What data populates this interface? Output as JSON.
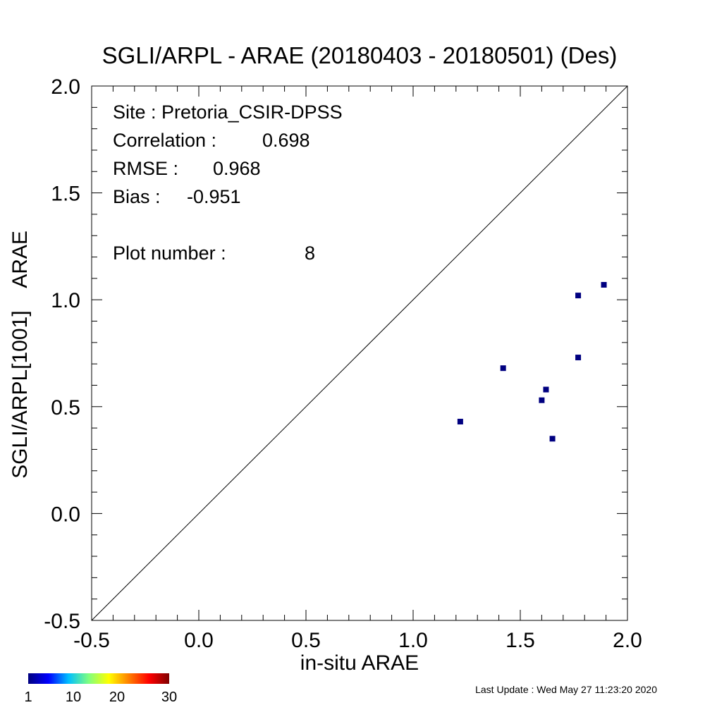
{
  "chart_data": {
    "type": "scatter",
    "title": "SGLI/ARPL - ARAE (20180403 - 20180501) (Des)",
    "xlabel": "in-situ ARAE",
    "ylabel": "SGLI/ARPL[1001]    ARAE",
    "xlim": [
      -0.5,
      2.0
    ],
    "ylim": [
      -0.5,
      2.0
    ],
    "x_ticks": [
      "-0.5",
      "0.0",
      "0.5",
      "1.0",
      "1.5",
      "2.0"
    ],
    "y_ticks": [
      "-0.5",
      "0.0",
      "0.5",
      "1.0",
      "1.5",
      "2.0"
    ],
    "reference_line": "1:1",
    "grid": false,
    "point_color": "#000080",
    "points": [
      {
        "x": 1.22,
        "y": 0.43
      },
      {
        "x": 1.42,
        "y": 0.68
      },
      {
        "x": 1.6,
        "y": 0.53
      },
      {
        "x": 1.62,
        "y": 0.58
      },
      {
        "x": 1.65,
        "y": 0.35
      },
      {
        "x": 1.77,
        "y": 0.73
      },
      {
        "x": 1.77,
        "y": 1.02
      },
      {
        "x": 1.89,
        "y": 1.07
      }
    ],
    "stats": {
      "site_label": "Site : Pretoria_CSIR-DPSS",
      "correlation_label": "Correlation :",
      "correlation_value": "0.698",
      "rmse_label": "RMSE :",
      "rmse_value": "0.968",
      "bias_label": "Bias :",
      "bias_value": "-0.951",
      "plot_number_label": "Plot number :",
      "plot_number_value": "8"
    },
    "colorbar": {
      "labels": [
        "1",
        "10",
        "20",
        "30"
      ],
      "colors": [
        "#00007f",
        "#0000ff",
        "#00bfff",
        "#7fff7f",
        "#ffff00",
        "#ff7f00",
        "#ff0000",
        "#7f0000"
      ]
    }
  },
  "footer": {
    "last_update": "Last Update : Wed May 27 11:23:20 2020"
  }
}
